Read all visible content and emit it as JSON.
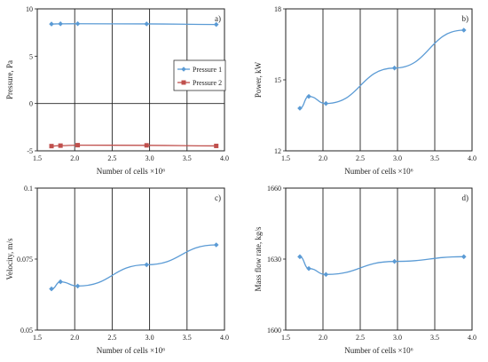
{
  "chart_data": [
    {
      "panel": "a)",
      "type": "line",
      "xlabel": "Number of cells ×10⁶",
      "ylabel": "Pressure, Pa",
      "xlim": [
        1.5,
        4.0
      ],
      "ylim": [
        -5,
        10
      ],
      "xticks": [
        "1.5",
        "2.0",
        "2.5",
        "3.0",
        "3.5",
        "4.0"
      ],
      "yticks": [
        "-5",
        "0",
        "5",
        "10"
      ],
      "grid": "vertical",
      "legend": "right",
      "series": [
        {
          "name": "Pressure 1",
          "color": "#5b9bd5",
          "marker": "diamond",
          "x": [
            1.69,
            1.81,
            2.04,
            2.96,
            3.89
          ],
          "y": [
            8.4,
            8.42,
            8.43,
            8.41,
            8.35
          ]
        },
        {
          "name": "Pressure 2",
          "color": "#c0504d",
          "marker": "square",
          "x": [
            1.69,
            1.81,
            2.04,
            2.96,
            3.89
          ],
          "y": [
            -4.5,
            -4.45,
            -4.4,
            -4.42,
            -4.48
          ]
        }
      ]
    },
    {
      "panel": "b)",
      "type": "line",
      "xlabel": "Number of cells ×10⁶",
      "ylabel": "Power, kW",
      "xlim": [
        1.5,
        4.0
      ],
      "ylim": [
        12,
        18
      ],
      "xticks": [
        "1.5",
        "2.0",
        "2.5",
        "3.0",
        "3.5",
        "4.0"
      ],
      "yticks": [
        "12",
        "15",
        "18"
      ],
      "grid": "vertical",
      "series": [
        {
          "color": "#5b9bd5",
          "marker": "diamond",
          "x": [
            1.69,
            1.81,
            2.04,
            2.96,
            3.89
          ],
          "y": [
            13.8,
            14.3,
            14.0,
            15.5,
            17.1
          ]
        }
      ]
    },
    {
      "panel": "c)",
      "type": "line",
      "xlabel": "Number of cells ×10⁶",
      "ylabel": "Velocity, m/s",
      "xlim": [
        1.5,
        4.0
      ],
      "ylim": [
        0.05,
        0.1
      ],
      "xticks": [
        "1.5",
        "2.0",
        "2.5",
        "3.0",
        "3.5",
        "4.0"
      ],
      "yticks": [
        "0.05",
        "0.075",
        "0.1"
      ],
      "grid": "vertical",
      "series": [
        {
          "color": "#5b9bd5",
          "marker": "diamond",
          "x": [
            1.69,
            1.81,
            2.04,
            2.96,
            3.89
          ],
          "y": [
            0.0645,
            0.067,
            0.0655,
            0.073,
            0.08
          ]
        }
      ]
    },
    {
      "panel": "d)",
      "type": "line",
      "xlabel": "Number of cells ×10⁶",
      "ylabel": "Mass flow rate, kg/s",
      "xlim": [
        1.5,
        4.0
      ],
      "ylim": [
        1600,
        1660
      ],
      "xticks": [
        "1.5",
        "2.0",
        "2.5",
        "3.0",
        "3.5",
        "4.0"
      ],
      "yticks": [
        "1600",
        "1630",
        "1660"
      ],
      "grid": "vertical",
      "series": [
        {
          "color": "#5b9bd5",
          "marker": "diamond",
          "x": [
            1.69,
            1.81,
            2.04,
            2.96,
            3.89
          ],
          "y": [
            1631,
            1626,
            1623.5,
            1629,
            1631
          ]
        }
      ]
    }
  ]
}
